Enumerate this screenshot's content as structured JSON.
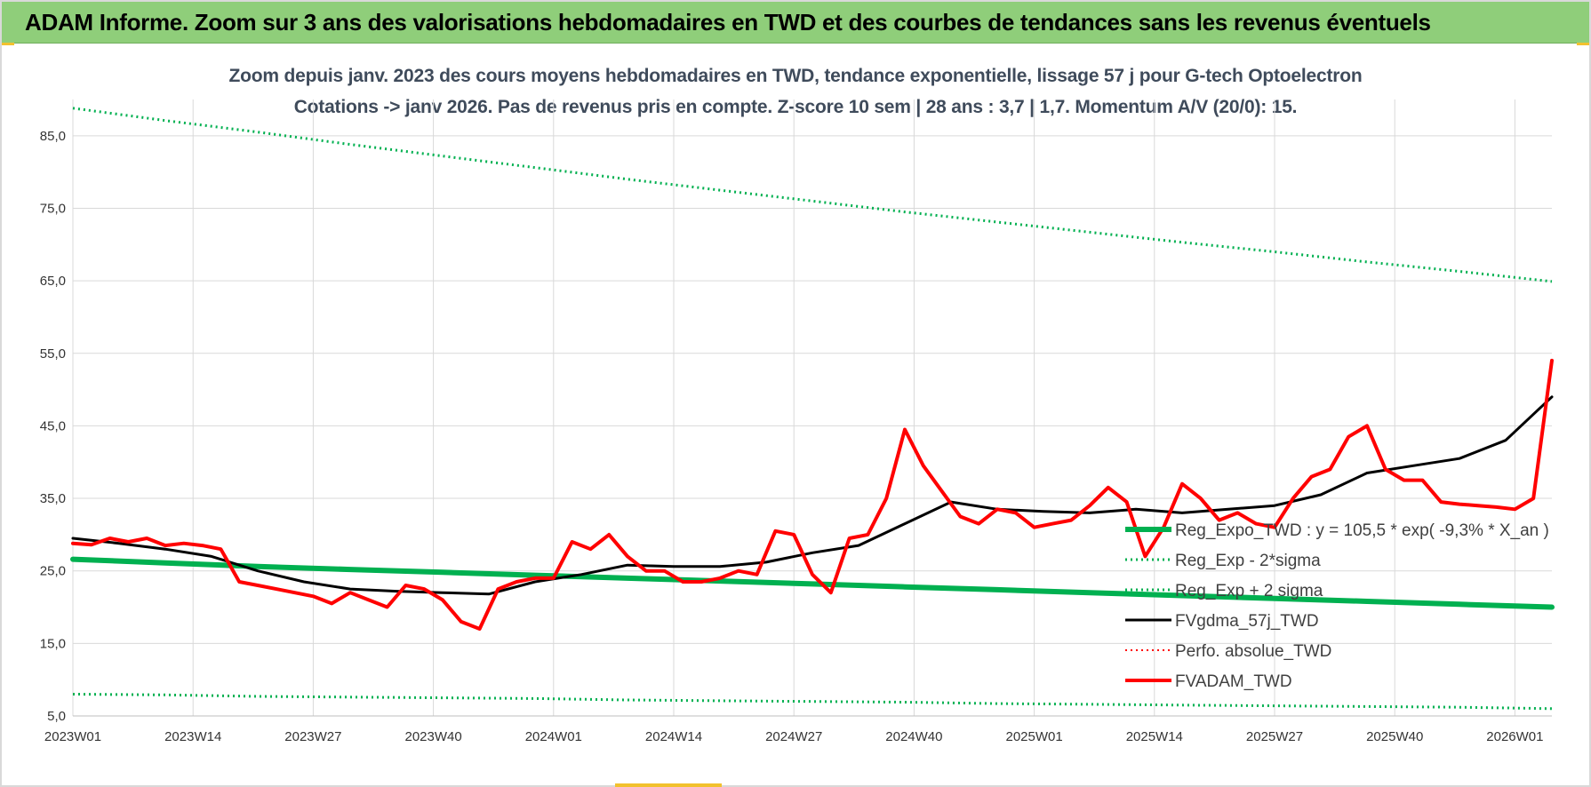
{
  "header": {
    "title": "ADAM Informe. Zoom sur 3 ans des valorisations hebdomadaires en TWD et des courbes de tendances sans les revenus éventuels"
  },
  "chart_data": {
    "type": "line",
    "title_line1": "Zoom depuis janv. 2023 des cours moyens hebdomadaires en TWD, tendance exponentielle, lissage 57 j pour G-tech Optoelectron",
    "title_line2": "Cotations -> janv 2026. Pas de revenus pris en compte. Z-score 10 sem | 28 ans : 3,7 | 1,7. Momentum A/V (20/0): 15.",
    "x_tick_labels": [
      "2023W01",
      "2023W14",
      "2023W27",
      "2023W40",
      "2024W01",
      "2024W14",
      "2024W27",
      "2024W40",
      "2025W01",
      "2025W14",
      "2025W27",
      "2025W40",
      "2026W01"
    ],
    "x_tick_weeks": [
      0,
      13,
      26,
      39,
      52,
      65,
      78,
      91,
      104,
      117,
      130,
      143,
      156
    ],
    "ylim": [
      5,
      90
    ],
    "y_ticks": [
      5,
      15,
      25,
      35,
      45,
      55,
      65,
      75,
      85
    ],
    "y_tick_labels": [
      "5,0",
      "15,0",
      "25,0",
      "35,0",
      "45,0",
      "55,0",
      "65,0",
      "75,0",
      "85,0"
    ],
    "grid": true,
    "legend_position": "right",
    "series": [
      {
        "name": "Reg_Expo_TWD : y = 105,5 * exp( -9,3% *  X_an )",
        "color": "#00b050",
        "style": "solid",
        "width": 6,
        "x": [
          0,
          10,
          20,
          30,
          40,
          50,
          60,
          70,
          80,
          90,
          100,
          110,
          120,
          130,
          140,
          150,
          160
        ],
        "y": [
          26.6,
          26.1,
          25.6,
          25.2,
          24.8,
          24.4,
          24.0,
          23.6,
          23.2,
          22.8,
          22.4,
          22.0,
          21.6,
          21.2,
          20.8,
          20.4,
          20.0
        ]
      },
      {
        "name": "Reg_Exp - 2*sigma",
        "color": "#00b050",
        "style": "dotted",
        "width": 3,
        "x": [
          0,
          10,
          20,
          30,
          40,
          50,
          60,
          70,
          80,
          90,
          100,
          110,
          120,
          130,
          140,
          150,
          160
        ],
        "y": [
          8.0,
          7.9,
          7.7,
          7.6,
          7.5,
          7.4,
          7.2,
          7.1,
          7.0,
          6.9,
          6.7,
          6.6,
          6.5,
          6.4,
          6.3,
          6.2,
          6.0
        ]
      },
      {
        "name": "Reg_Exp + 2 sigma",
        "color": "#00b050",
        "style": "dotted",
        "width": 3,
        "x": [
          0,
          10,
          20,
          30,
          40,
          50,
          60,
          70,
          80,
          90,
          100,
          110,
          120,
          130,
          140,
          150,
          160
        ],
        "y": [
          88.8,
          87.1,
          85.5,
          83.8,
          82.2,
          80.6,
          79.0,
          77.5,
          76.0,
          74.5,
          73.1,
          71.7,
          70.3,
          69.0,
          67.6,
          66.3,
          64.9
        ]
      },
      {
        "name": "FVgdma_57j_TWD",
        "color": "#000000",
        "style": "solid",
        "width": 3,
        "x": [
          0,
          5,
          10,
          15,
          20,
          25,
          30,
          35,
          40,
          45,
          50,
          55,
          60,
          65,
          70,
          75,
          80,
          85,
          90,
          95,
          100,
          105,
          110,
          115,
          120,
          125,
          130,
          135,
          140,
          145,
          150,
          155,
          160
        ],
        "y": [
          29.5,
          28.8,
          28.0,
          27.0,
          25.0,
          23.5,
          22.5,
          22.2,
          22.0,
          21.8,
          23.5,
          24.5,
          25.8,
          25.6,
          25.6,
          26.2,
          27.5,
          28.5,
          31.5,
          34.5,
          33.5,
          33.2,
          33.0,
          33.5,
          33.0,
          33.5,
          34.0,
          35.5,
          38.5,
          39.5,
          40.5,
          43.0,
          49.0
        ]
      },
      {
        "name": "Perfo. absolue_TWD",
        "color": "#ff0000",
        "style": "dotted",
        "width": 2,
        "x": [],
        "y": []
      },
      {
        "name": "FVADAM_TWD",
        "color": "#ff0000",
        "style": "solid",
        "width": 4,
        "x": [
          0,
          2,
          4,
          6,
          8,
          10,
          12,
          14,
          16,
          18,
          20,
          22,
          24,
          26,
          28,
          30,
          32,
          34,
          36,
          38,
          40,
          42,
          44,
          46,
          48,
          50,
          52,
          54,
          56,
          58,
          60,
          62,
          64,
          66,
          68,
          70,
          72,
          74,
          76,
          78,
          80,
          82,
          84,
          86,
          88,
          90,
          92,
          94,
          96,
          98,
          100,
          102,
          104,
          106,
          108,
          110,
          112,
          114,
          116,
          118,
          120,
          122,
          124,
          126,
          128,
          130,
          132,
          134,
          136,
          138,
          140,
          142,
          144,
          146,
          148,
          150,
          152,
          154,
          156,
          158,
          160
        ],
        "y": [
          28.8,
          28.6,
          29.5,
          29.0,
          29.5,
          28.5,
          28.8,
          28.5,
          28.0,
          23.5,
          23.0,
          22.5,
          22.0,
          21.5,
          20.5,
          22.0,
          21.0,
          20.0,
          23.0,
          22.5,
          21.0,
          18.0,
          17.0,
          22.5,
          23.5,
          24.0,
          24.0,
          29.0,
          28.0,
          30.0,
          27.0,
          25.0,
          25.0,
          23.5,
          23.5,
          24.0,
          25.0,
          24.5,
          30.5,
          30.0,
          24.5,
          22.0,
          29.5,
          30.0,
          35.0,
          44.5,
          39.5,
          36.0,
          32.5,
          31.5,
          33.5,
          33.0,
          31.0,
          31.5,
          32.0,
          34.0,
          36.5,
          34.5,
          27.0,
          31.0,
          37.0,
          35.0,
          32.0,
          33.0,
          31.5,
          31.0,
          35.0,
          38.0,
          39.0,
          43.5,
          45.0,
          39.0,
          37.5,
          37.5,
          34.5,
          34.2,
          34.0,
          33.8,
          33.5,
          35.0,
          54.0
        ]
      }
    ]
  }
}
